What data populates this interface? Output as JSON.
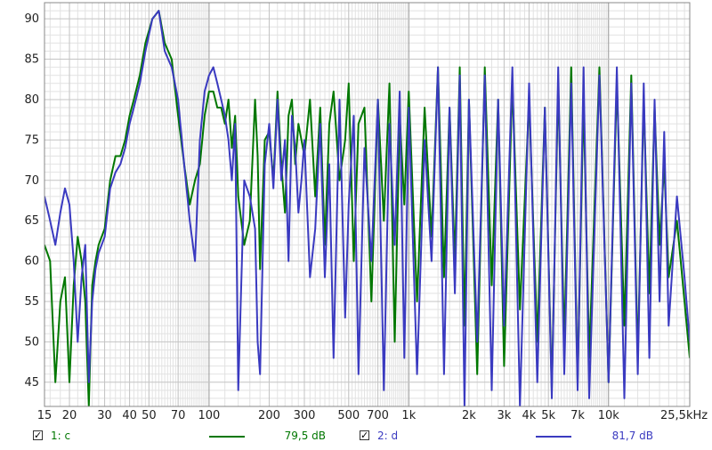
{
  "chart_data": {
    "type": "line",
    "title": "",
    "xlabel": "",
    "ylabel": "",
    "x_scale": "log",
    "xlim": [
      15,
      25500
    ],
    "ylim": [
      42,
      92
    ],
    "grid": true,
    "x_tick_labels": [
      {
        "v": 15,
        "t": "15"
      },
      {
        "v": 20,
        "t": "20"
      },
      {
        "v": 30,
        "t": "30"
      },
      {
        "v": 40,
        "t": "40"
      },
      {
        "v": 50,
        "t": "50"
      },
      {
        "v": 70,
        "t": "70"
      },
      {
        "v": 100,
        "t": "100"
      },
      {
        "v": 200,
        "t": "200"
      },
      {
        "v": 300,
        "t": "300"
      },
      {
        "v": 500,
        "t": "500"
      },
      {
        "v": 700,
        "t": "700"
      },
      {
        "v": 1000,
        "t": "1k"
      },
      {
        "v": 2000,
        "t": "2k"
      },
      {
        "v": 3000,
        "t": "3k"
      },
      {
        "v": 4000,
        "t": "4k"
      },
      {
        "v": 5000,
        "t": "5k"
      },
      {
        "v": 7000,
        "t": "7k"
      },
      {
        "v": 10000,
        "t": "10k"
      },
      {
        "v": 25500,
        "t": "25,5kHz"
      }
    ],
    "y_ticks": [
      45,
      50,
      55,
      60,
      65,
      70,
      75,
      80,
      85,
      90
    ],
    "series": [
      {
        "name": "1: c",
        "color": "#007700",
        "level_label": "79,5 dB",
        "points": [
          [
            15,
            62
          ],
          [
            16,
            60
          ],
          [
            17,
            45
          ],
          [
            18,
            55
          ],
          [
            19,
            58
          ],
          [
            20,
            45
          ],
          [
            21,
            57
          ],
          [
            22,
            63
          ],
          [
            23,
            60
          ],
          [
            24,
            55
          ],
          [
            25,
            42
          ],
          [
            26,
            57
          ],
          [
            27,
            60
          ],
          [
            28,
            62
          ],
          [
            30,
            64
          ],
          [
            32,
            70
          ],
          [
            34,
            73
          ],
          [
            36,
            73
          ],
          [
            38,
            75
          ],
          [
            40,
            78
          ],
          [
            42,
            80
          ],
          [
            45,
            83
          ],
          [
            48,
            87
          ],
          [
            52,
            90
          ],
          [
            56,
            91
          ],
          [
            60,
            87
          ],
          [
            65,
            85
          ],
          [
            70,
            78
          ],
          [
            75,
            72
          ],
          [
            80,
            67
          ],
          [
            85,
            70
          ],
          [
            90,
            72
          ],
          [
            95,
            78
          ],
          [
            100,
            81
          ],
          [
            105,
            81
          ],
          [
            110,
            79
          ],
          [
            115,
            79
          ],
          [
            120,
            77
          ],
          [
            125,
            80
          ],
          [
            130,
            74
          ],
          [
            135,
            78
          ],
          [
            140,
            68
          ],
          [
            150,
            62
          ],
          [
            160,
            65
          ],
          [
            170,
            80
          ],
          [
            175,
            73
          ],
          [
            180,
            59
          ],
          [
            190,
            75
          ],
          [
            200,
            76
          ],
          [
            210,
            70
          ],
          [
            220,
            81
          ],
          [
            230,
            72
          ],
          [
            240,
            66
          ],
          [
            250,
            78
          ],
          [
            260,
            80
          ],
          [
            270,
            72
          ],
          [
            280,
            77
          ],
          [
            290,
            75
          ],
          [
            300,
            73
          ],
          [
            320,
            80
          ],
          [
            340,
            68
          ],
          [
            360,
            79
          ],
          [
            380,
            62
          ],
          [
            400,
            77
          ],
          [
            420,
            81
          ],
          [
            450,
            70
          ],
          [
            480,
            75
          ],
          [
            500,
            82
          ],
          [
            530,
            60
          ],
          [
            560,
            77
          ],
          [
            600,
            79
          ],
          [
            650,
            55
          ],
          [
            700,
            80
          ],
          [
            750,
            65
          ],
          [
            800,
            82
          ],
          [
            850,
            50
          ],
          [
            900,
            78
          ],
          [
            950,
            67
          ],
          [
            1000,
            81
          ],
          [
            1100,
            55
          ],
          [
            1200,
            79
          ],
          [
            1300,
            63
          ],
          [
            1400,
            84
          ],
          [
            1500,
            58
          ],
          [
            1600,
            79
          ],
          [
            1700,
            60
          ],
          [
            1800,
            84
          ],
          [
            1900,
            52
          ],
          [
            2000,
            80
          ],
          [
            2200,
            46
          ],
          [
            2400,
            84
          ],
          [
            2600,
            57
          ],
          [
            2800,
            80
          ],
          [
            3000,
            47
          ],
          [
            3300,
            82
          ],
          [
            3600,
            54
          ],
          [
            4000,
            80
          ],
          [
            4400,
            50
          ],
          [
            4800,
            79
          ],
          [
            5200,
            44
          ],
          [
            5600,
            82
          ],
          [
            6000,
            50
          ],
          [
            6500,
            84
          ],
          [
            7000,
            45
          ],
          [
            7500,
            80
          ],
          [
            8000,
            48
          ],
          [
            9000,
            84
          ],
          [
            10000,
            45
          ],
          [
            11000,
            82
          ],
          [
            12000,
            52
          ],
          [
            13000,
            83
          ],
          [
            14000,
            48
          ],
          [
            15000,
            80
          ],
          [
            16000,
            56
          ],
          [
            17000,
            79
          ],
          [
            18000,
            62
          ],
          [
            19000,
            72
          ],
          [
            20000,
            58
          ],
          [
            22000,
            65
          ],
          [
            24000,
            55
          ],
          [
            25500,
            48
          ]
        ]
      },
      {
        "name": "2: d",
        "color": "#3a3ac0",
        "level_label": "81,7 dB",
        "points": [
          [
            15,
            68
          ],
          [
            16,
            65
          ],
          [
            17,
            62
          ],
          [
            18,
            66
          ],
          [
            19,
            69
          ],
          [
            20,
            67
          ],
          [
            21,
            60
          ],
          [
            22,
            50
          ],
          [
            23,
            58
          ],
          [
            24,
            62
          ],
          [
            25,
            45
          ],
          [
            26,
            55
          ],
          [
            27,
            59
          ],
          [
            28,
            61
          ],
          [
            30,
            63
          ],
          [
            32,
            69
          ],
          [
            34,
            71
          ],
          [
            36,
            72
          ],
          [
            38,
            74
          ],
          [
            40,
            77
          ],
          [
            42,
            79
          ],
          [
            45,
            82
          ],
          [
            48,
            86
          ],
          [
            52,
            90
          ],
          [
            56,
            91
          ],
          [
            60,
            86
          ],
          [
            65,
            84
          ],
          [
            70,
            80
          ],
          [
            75,
            72
          ],
          [
            80,
            65
          ],
          [
            85,
            60
          ],
          [
            90,
            75
          ],
          [
            95,
            81
          ],
          [
            100,
            83
          ],
          [
            105,
            84
          ],
          [
            110,
            82
          ],
          [
            115,
            80
          ],
          [
            120,
            78
          ],
          [
            125,
            75
          ],
          [
            130,
            70
          ],
          [
            135,
            77
          ],
          [
            140,
            44
          ],
          [
            150,
            70
          ],
          [
            160,
            68
          ],
          [
            170,
            64
          ],
          [
            175,
            50
          ],
          [
            180,
            46
          ],
          [
            190,
            72
          ],
          [
            200,
            77
          ],
          [
            210,
            69
          ],
          [
            220,
            80
          ],
          [
            230,
            70
          ],
          [
            240,
            75
          ],
          [
            250,
            60
          ],
          [
            260,
            78
          ],
          [
            270,
            74
          ],
          [
            280,
            66
          ],
          [
            290,
            70
          ],
          [
            300,
            75
          ],
          [
            320,
            58
          ],
          [
            340,
            64
          ],
          [
            360,
            77
          ],
          [
            380,
            58
          ],
          [
            400,
            72
          ],
          [
            420,
            48
          ],
          [
            450,
            80
          ],
          [
            480,
            53
          ],
          [
            500,
            67
          ],
          [
            530,
            78
          ],
          [
            560,
            46
          ],
          [
            600,
            74
          ],
          [
            650,
            60
          ],
          [
            700,
            80
          ],
          [
            750,
            44
          ],
          [
            800,
            77
          ],
          [
            850,
            62
          ],
          [
            900,
            81
          ],
          [
            950,
            48
          ],
          [
            1000,
            79
          ],
          [
            1100,
            46
          ],
          [
            1200,
            75
          ],
          [
            1300,
            60
          ],
          [
            1400,
            84
          ],
          [
            1500,
            46
          ],
          [
            1600,
            79
          ],
          [
            1700,
            56
          ],
          [
            1800,
            83
          ],
          [
            1900,
            42
          ],
          [
            2000,
            80
          ],
          [
            2200,
            50
          ],
          [
            2400,
            83
          ],
          [
            2600,
            44
          ],
          [
            2800,
            80
          ],
          [
            3000,
            52
          ],
          [
            3300,
            84
          ],
          [
            3600,
            42
          ],
          [
            4000,
            82
          ],
          [
            4400,
            45
          ],
          [
            4800,
            79
          ],
          [
            5200,
            43
          ],
          [
            5600,
            84
          ],
          [
            6000,
            46
          ],
          [
            6500,
            82
          ],
          [
            7000,
            44
          ],
          [
            7500,
            84
          ],
          [
            8000,
            43
          ],
          [
            9000,
            83
          ],
          [
            10000,
            45
          ],
          [
            11000,
            84
          ],
          [
            12000,
            43
          ],
          [
            13000,
            82
          ],
          [
            14000,
            46
          ],
          [
            15000,
            82
          ],
          [
            16000,
            48
          ],
          [
            17000,
            80
          ],
          [
            18000,
            55
          ],
          [
            19000,
            76
          ],
          [
            20000,
            52
          ],
          [
            22000,
            68
          ],
          [
            24000,
            58
          ],
          [
            25500,
            50
          ]
        ]
      }
    ]
  },
  "legend": {
    "items": [
      {
        "checked": true,
        "label": "1: c",
        "value": "79,5 dB"
      },
      {
        "checked": true,
        "label": "2: d",
        "value": "81,7 dB"
      }
    ]
  }
}
